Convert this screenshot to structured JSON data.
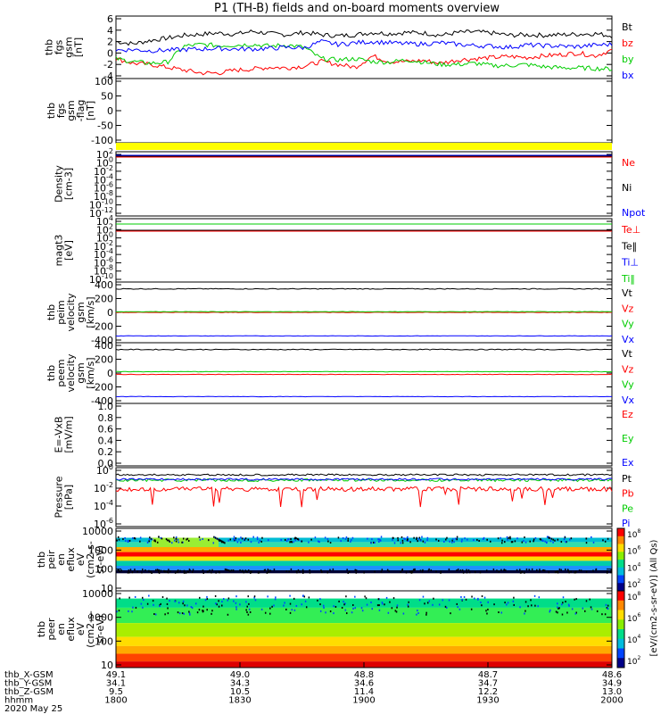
{
  "chart_data": {
    "type": "line",
    "title": "P1  (TH-B) fields and on-board moments overview",
    "panels": [
      {
        "id": "fgs",
        "ylabel": [
          "thb",
          "fgs",
          "gsm",
          "[nT]"
        ],
        "yticks": [
          "6",
          "4",
          "2",
          "0",
          "-2",
          "-4"
        ],
        "legend": [
          {
            "name": "Bt",
            "color": "#000000"
          },
          {
            "name": "bz",
            "color": "#ff0000"
          },
          {
            "name": "by",
            "color": "#00cc00"
          },
          {
            "name": "bx",
            "color": "#0000ff"
          }
        ],
        "series": [
          {
            "name": "Bt",
            "color": "#000000",
            "values": [
              2.0,
              1.6,
              2.2,
              2.6,
              3.1,
              3.3,
              3.5,
              3.3,
              3.8,
              3.4,
              3.2,
              3.6,
              3.2,
              3.0,
              3.2,
              3.6,
              3.4,
              3.6,
              3.5,
              3.1,
              3.6,
              3.7,
              3.5,
              3.1,
              3.2,
              3.1,
              3.2,
              3.3,
              3.4,
              3.0
            ]
          },
          {
            "name": "bz",
            "color": "#ff0000",
            "values": [
              -1.0,
              -1.8,
              -2.0,
              -2.5,
              -3.0,
              -3.5,
              -3.5,
              -3.0,
              -2.8,
              -2.5,
              -2.6,
              -2.3,
              -1.5,
              -2.0,
              -2.5,
              -0.5,
              -1.5,
              -1.5,
              -1.3,
              -1.8,
              -1.2,
              -1.0,
              -0.8,
              -0.6,
              -0.8,
              -0.5,
              -0.3,
              0.0,
              -0.5,
              0.5
            ]
          },
          {
            "name": "by",
            "color": "#00cc00",
            "values": [
              -1.0,
              -1.5,
              -1.8,
              -1.6,
              1.2,
              1.5,
              1.3,
              1.4,
              1.5,
              1.2,
              1.4,
              1.0,
              -1.0,
              -1.2,
              -1.0,
              -1.5,
              -1.6,
              -1.2,
              -1.6,
              -2.0,
              -2.0,
              -1.8,
              -2.2,
              -2.2,
              -2.0,
              -2.4,
              -2.6,
              -2.6,
              -2.7,
              -2.8
            ]
          },
          {
            "name": "bx",
            "color": "#0000ff",
            "values": [
              0.5,
              0.6,
              0.4,
              0.5,
              0.6,
              0.7,
              0.8,
              0.7,
              0.7,
              0.8,
              1.0,
              0.9,
              2.0,
              1.5,
              1.8,
              2.0,
              1.8,
              1.6,
              1.6,
              1.8,
              1.5,
              1.3,
              1.2,
              1.0,
              1.4,
              1.3,
              1.2,
              1.1,
              1.4,
              1.5
            ]
          }
        ]
      },
      {
        "id": "fgs_pos",
        "ylabel": [
          "thb",
          "fgs",
          "gsm",
          "-flag",
          "[nT]"
        ],
        "yticks": [
          "100",
          "50",
          "0",
          "-50",
          "-100"
        ]
      },
      {
        "id": "flag",
        "band_color": "#ffff00"
      },
      {
        "id": "density",
        "ylabel": [
          "Density",
          "[cm-3]"
        ],
        "yticks": [
          "10^2",
          "10^0",
          "10^-2",
          "10^-4",
          "10^-6",
          "10^-8",
          "10^-10",
          "10^-12"
        ],
        "legend": [
          {
            "name": "Ne",
            "color": "#ff0000"
          },
          {
            "name": "Ni",
            "color": "#000000"
          },
          {
            "name": "Npot",
            "color": "#0000ff"
          }
        ]
      },
      {
        "id": "temp",
        "ylabel": [
          "magt3",
          "[eV]"
        ],
        "yticks": [
          "10^4",
          "10^2",
          "10^0",
          "10^-2",
          "10^-4",
          "10^-6",
          "10^-8",
          "10^-10"
        ],
        "legend": [
          {
            "name": "Te⊥",
            "color": "#ff0000"
          },
          {
            "name": "Te‖",
            "color": "#000000"
          },
          {
            "name": "Ti⊥",
            "color": "#0000ff"
          },
          {
            "name": "Ti‖",
            "color": "#00cc00"
          }
        ]
      },
      {
        "id": "peim_v",
        "ylabel": [
          "thb",
          "peim",
          "velocity",
          "gsm",
          "[km/s]"
        ],
        "yticks": [
          "400",
          "200",
          "0",
          "-200",
          "-400"
        ],
        "legend": [
          {
            "name": "Vt",
            "color": "#000000"
          },
          {
            "name": "Vz",
            "color": "#ff0000"
          },
          {
            "name": "Vy",
            "color": "#00cc00"
          },
          {
            "name": "Vx",
            "color": "#0000ff"
          }
        ],
        "series": [
          {
            "name": "Vt",
            "color": "#000000",
            "level": 340
          },
          {
            "name": "Vz",
            "color": "#ff0000",
            "level": 0
          },
          {
            "name": "Vy",
            "color": "#00cc00",
            "level": 10
          },
          {
            "name": "Vx",
            "color": "#0000ff",
            "level": -340
          }
        ]
      },
      {
        "id": "peem_v",
        "ylabel": [
          "thb",
          "peem",
          "velocity",
          "gsm",
          "[km/s]"
        ],
        "yticks": [
          "400",
          "200",
          "0",
          "-200",
          "-400"
        ],
        "legend": [
          {
            "name": "Vt",
            "color": "#000000"
          },
          {
            "name": "Vz",
            "color": "#ff0000"
          },
          {
            "name": "Vy",
            "color": "#00cc00"
          },
          {
            "name": "Vx",
            "color": "#0000ff"
          }
        ],
        "series": [
          {
            "name": "Vt",
            "color": "#000000",
            "level": 340
          },
          {
            "name": "Vz",
            "color": "#ff0000",
            "level": -20
          },
          {
            "name": "Vy",
            "color": "#00cc00",
            "level": 20
          },
          {
            "name": "Vx",
            "color": "#0000ff",
            "level": -340
          }
        ]
      },
      {
        "id": "efield",
        "ylabel": [
          "E=-VxB",
          "[mV/m]"
        ],
        "yticks": [
          "1.0",
          "0.8",
          "0.6",
          "0.4",
          "0.2",
          "0.0"
        ],
        "legend": [
          {
            "name": "Ez",
            "color": "#ff0000"
          },
          {
            "name": "Ey",
            "color": "#00cc00"
          },
          {
            "name": "Ex",
            "color": "#0000ff"
          }
        ]
      },
      {
        "id": "pressure",
        "ylabel": [
          "Pressure",
          "[nPa]"
        ],
        "yticks": [
          "10^0",
          "10^-2",
          "10^-4",
          "10^-6"
        ],
        "legend": [
          {
            "name": "Pt",
            "color": "#000000"
          },
          {
            "name": "Pb",
            "color": "#ff0000"
          },
          {
            "name": "Pe",
            "color": "#00cc00"
          },
          {
            "name": "Pi",
            "color": "#0000ff"
          }
        ]
      },
      {
        "id": "peir",
        "ylabel": [
          "thb",
          "peir",
          "en",
          "eflux",
          "eV",
          "(cm^2-s-",
          "sr-eV)"
        ],
        "yticks": [
          "10000",
          "1000",
          "100",
          "10"
        ]
      },
      {
        "id": "peer",
        "ylabel": [
          "thb",
          "peer",
          "en",
          "eflux",
          "eV",
          "(cm^2-s-",
          "sr-eV)"
        ],
        "yticks": [
          "10000",
          "1000",
          "100",
          "10"
        ]
      }
    ],
    "colorbars": [
      {
        "labels": [
          "10^8",
          "10^6",
          "10^4",
          "10^2"
        ],
        "title": "[eV/(cm^2-s-sr-eV)] (All Qs)"
      },
      {
        "labels": [
          "10^8",
          "10^6",
          "10^4",
          "10^2"
        ],
        "title": "[eV/(cm^2-s-sr-eV)]"
      }
    ],
    "x_axis": {
      "rows": [
        {
          "label": "thb_X-GSM",
          "values": [
            "49.1",
            "49.0",
            "48.8",
            "48.7",
            "48.6"
          ]
        },
        {
          "label": "thb_Y-GSM",
          "values": [
            "34.1",
            "34.3",
            "34.6",
            "34.7",
            "34.9"
          ]
        },
        {
          "label": "thb_Z-GSM",
          "values": [
            "9.5",
            "10.5",
            "11.4",
            "12.2",
            "13.0"
          ]
        },
        {
          "label": "hhmm",
          "values": [
            "1800",
            "1830",
            "1900",
            "1930",
            "2000"
          ]
        }
      ],
      "date": "2020 May 25"
    }
  }
}
